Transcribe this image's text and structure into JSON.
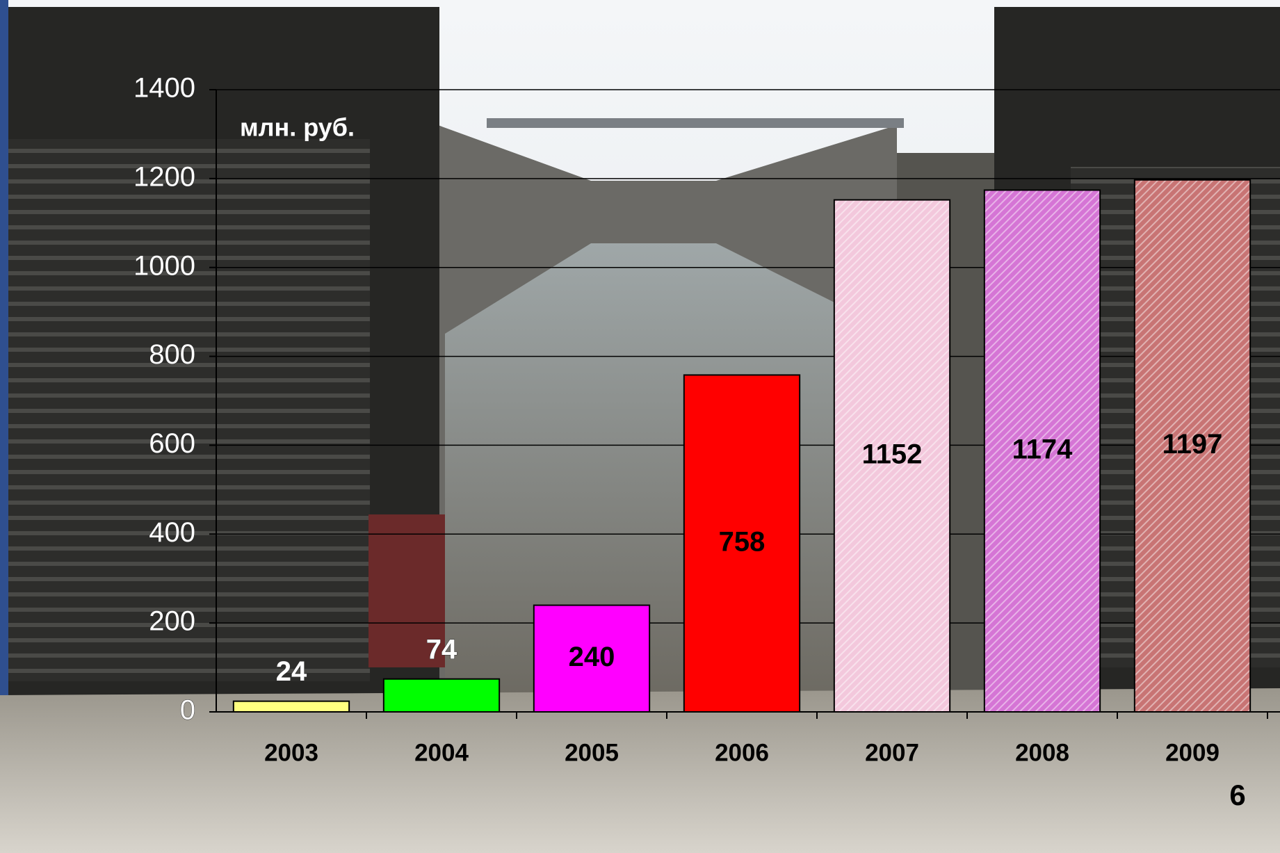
{
  "chart_data": {
    "type": "bar",
    "y_label": "млн. руб.",
    "categories": [
      "2003",
      "2004",
      "2005",
      "2006",
      "2007",
      "2008",
      "2009"
    ],
    "values": [
      24,
      74,
      240,
      758,
      1152,
      1174,
      1197
    ],
    "colors": [
      "#ffff80",
      "#00ff00",
      "#ff00ff",
      "#ff0000",
      "#f3c8dc",
      "#d575d5",
      "#c87474"
    ],
    "hatched": [
      false,
      false,
      false,
      false,
      true,
      true,
      true
    ],
    "ylim": [
      0,
      1400
    ],
    "yticks": [
      0,
      200,
      400,
      600,
      800,
      1000,
      1200,
      1400
    ],
    "grid": true
  },
  "page_number": "6"
}
